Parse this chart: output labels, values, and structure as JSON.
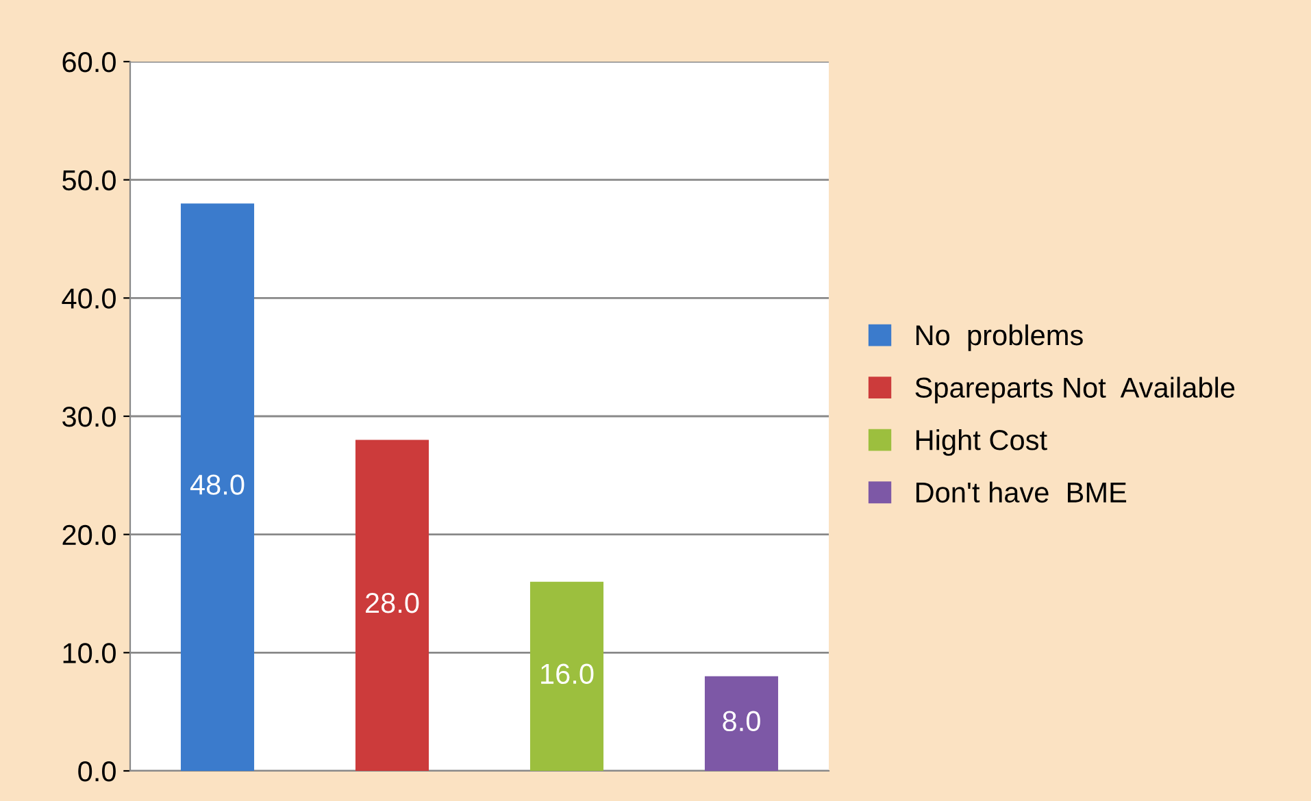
{
  "chart_data": {
    "type": "bar",
    "categories": [
      null,
      null,
      null,
      null
    ],
    "series": [
      {
        "name": "No  problems",
        "color": "#3b7bcc",
        "values": [
          48,
          null,
          null,
          null
        ],
        "value_labels": [
          "48.0",
          null,
          null,
          null
        ]
      },
      {
        "name": "Spareparts Not  Available",
        "color": "#cc3b3b",
        "values": [
          null,
          28,
          null,
          null
        ],
        "value_labels": [
          null,
          "28.0",
          null,
          null
        ]
      },
      {
        "name": "Hight Cost",
        "color": "#9cbf3e",
        "values": [
          null,
          null,
          16,
          null
        ],
        "value_labels": [
          null,
          null,
          "16.0",
          null
        ]
      },
      {
        "name": "Don't have  BME",
        "color": "#7d58a6",
        "values": [
          null,
          null,
          null,
          8
        ],
        "value_labels": [
          null,
          null,
          null,
          "8.0"
        ]
      }
    ],
    "ylim": [
      0,
      60
    ],
    "yticks": [
      {
        "value": 0,
        "label": "0.0"
      },
      {
        "value": 10,
        "label": "10.0"
      },
      {
        "value": 20,
        "label": "20.0"
      },
      {
        "value": 30,
        "label": "30.0"
      },
      {
        "value": 40,
        "label": "40.0"
      },
      {
        "value": 50,
        "label": "50.0"
      },
      {
        "value": 60,
        "label": "60.0"
      }
    ],
    "grid": "y",
    "legend": "right"
  }
}
